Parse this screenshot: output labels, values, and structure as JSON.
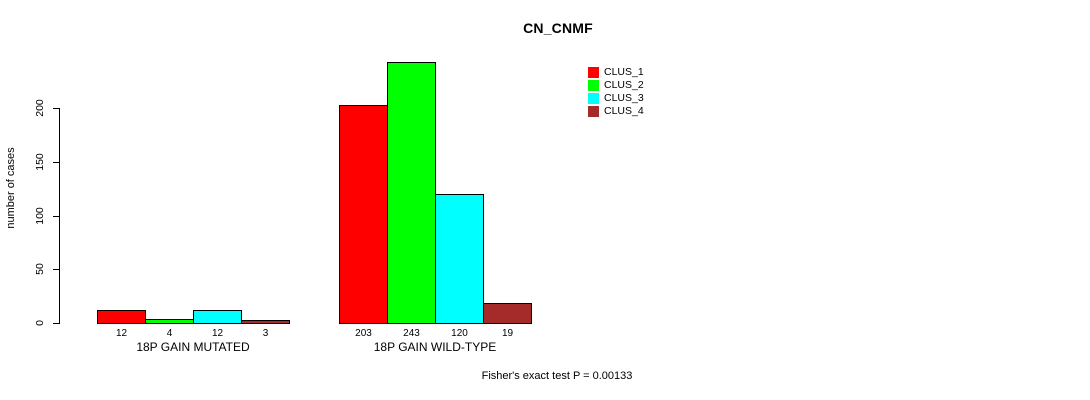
{
  "title": "CN_CNMF",
  "ylabel": "number of cases",
  "footer": "Fisher's exact test P = 0.00133",
  "chart_data": {
    "type": "bar",
    "title": "CN_CNMF",
    "xlabel": "",
    "ylabel": "number of cases",
    "ylim": [
      0,
      200
    ],
    "yticks": [
      0,
      50,
      100,
      150,
      200
    ],
    "categories": [
      "18P GAIN MUTATED",
      "18P GAIN WILD-TYPE"
    ],
    "series": [
      {
        "name": "CLUS_1",
        "color": "#ff0000",
        "values": [
          12,
          203
        ]
      },
      {
        "name": "CLUS_2",
        "color": "#00ff00",
        "values": [
          4,
          243
        ]
      },
      {
        "name": "CLUS_3",
        "color": "#00ffff",
        "values": [
          12,
          120
        ]
      },
      {
        "name": "CLUS_4",
        "color": "#a52a2a",
        "values": [
          3,
          19
        ]
      }
    ],
    "bar_value_labels": [
      [
        12,
        4,
        12,
        3
      ],
      [
        203,
        243,
        120,
        19
      ]
    ],
    "legend_position": "top-right",
    "grid": false,
    "annotation": "Fisher's exact test P = 0.00133"
  }
}
